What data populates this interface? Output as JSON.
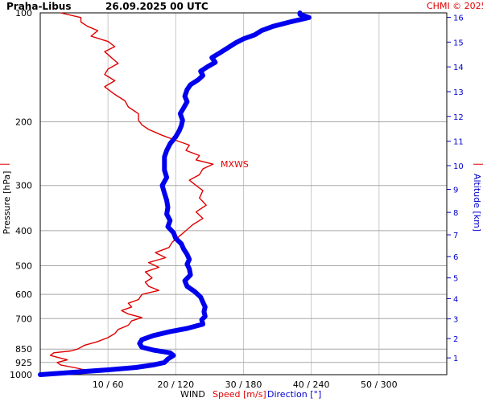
{
  "header": {
    "station": "Praha-Libus",
    "datetime": "26.09.2025 00 UTC",
    "copyright": "CHMI © 2025"
  },
  "chart_data": {
    "type": "line",
    "y_axis": {
      "label": "Pressure [hPa]",
      "scale": "log",
      "range": [
        1000,
        100
      ],
      "ticks": [
        100,
        200,
        300,
        400,
        500,
        600,
        700,
        850,
        925,
        1000
      ]
    },
    "right_axis": {
      "label": "Altitude [km]",
      "ticks": [
        1,
        2,
        3,
        4,
        5,
        6,
        7,
        8,
        9,
        10,
        11,
        12,
        13,
        14,
        15,
        16
      ]
    },
    "x_axis": {
      "title": "WIND",
      "speed_label": "Speed [m/s]",
      "direction_label": "Direction [°]",
      "tick_labels": [
        "10 / 60",
        "20 / 120",
        "30 / 180",
        "40 / 240",
        "50 / 300"
      ],
      "speed_range": [
        0,
        60
      ],
      "direction_range": [
        0,
        360
      ]
    },
    "annotation": "MXWS",
    "grid": true,
    "series": [
      {
        "name": "Speed [m/s]",
        "color": "#e00000",
        "points": [
          [
            1000,
            1.0
          ],
          [
            990,
            4.5
          ],
          [
            975,
            7.0
          ],
          [
            960,
            5.5
          ],
          [
            940,
            3.0
          ],
          [
            925,
            2.5
          ],
          [
            910,
            4.0
          ],
          [
            900,
            3.0
          ],
          [
            885,
            1.5
          ],
          [
            870,
            2.0
          ],
          [
            860,
            4.5
          ],
          [
            850,
            5.5
          ],
          [
            830,
            6.5
          ],
          [
            810,
            8.5
          ],
          [
            790,
            10.0
          ],
          [
            770,
            11.0
          ],
          [
            750,
            11.5
          ],
          [
            730,
            13.0
          ],
          [
            710,
            13.5
          ],
          [
            695,
            15.0
          ],
          [
            680,
            13.0
          ],
          [
            665,
            12.0
          ],
          [
            650,
            13.5
          ],
          [
            635,
            13.0
          ],
          [
            620,
            14.5
          ],
          [
            600,
            15.0
          ],
          [
            585,
            17.5
          ],
          [
            570,
            16.0
          ],
          [
            555,
            15.5
          ],
          [
            540,
            16.5
          ],
          [
            520,
            15.5
          ],
          [
            505,
            17.5
          ],
          [
            490,
            16.0
          ],
          [
            475,
            18.5
          ],
          [
            460,
            17.0
          ],
          [
            445,
            19.0
          ],
          [
            430,
            19.5
          ],
          [
            415,
            20.5
          ],
          [
            400,
            21.5
          ],
          [
            385,
            22.5
          ],
          [
            370,
            24.0
          ],
          [
            355,
            23.0
          ],
          [
            340,
            24.5
          ],
          [
            325,
            23.5
          ],
          [
            310,
            24.0
          ],
          [
            300,
            23.0
          ],
          [
            290,
            22.0
          ],
          [
            280,
            23.5
          ],
          [
            270,
            24.0
          ],
          [
            262,
            25.5
          ],
          [
            255,
            23.0
          ],
          [
            248,
            23.5
          ],
          [
            240,
            21.5
          ],
          [
            232,
            22.0
          ],
          [
            225,
            20.0
          ],
          [
            218,
            18.0
          ],
          [
            210,
            16.0
          ],
          [
            204,
            15.0
          ],
          [
            198,
            14.5
          ],
          [
            190,
            14.5
          ],
          [
            182,
            13.0
          ],
          [
            175,
            12.5
          ],
          [
            168,
            11.0
          ],
          [
            160,
            9.5
          ],
          [
            154,
            11.0
          ],
          [
            148,
            9.5
          ],
          [
            143,
            10.0
          ],
          [
            138,
            11.5
          ],
          [
            133,
            10.5
          ],
          [
            128,
            9.5
          ],
          [
            124,
            11.0
          ],
          [
            120,
            10.0
          ],
          [
            116,
            7.5
          ],
          [
            112,
            8.5
          ],
          [
            109,
            7.0
          ],
          [
            106,
            6.0
          ],
          [
            103,
            6.0
          ],
          [
            100,
            3.0
          ]
        ]
      },
      {
        "name": "Direction [°]",
        "color": "#0000ee",
        "points": [
          [
            1000,
            0
          ],
          [
            985,
            30
          ],
          [
            970,
            60
          ],
          [
            955,
            85
          ],
          [
            940,
            100
          ],
          [
            925,
            110
          ],
          [
            905,
            113
          ],
          [
            885,
            118
          ],
          [
            870,
            115
          ],
          [
            855,
            100
          ],
          [
            840,
            90
          ],
          [
            820,
            88
          ],
          [
            800,
            90
          ],
          [
            780,
            100
          ],
          [
            760,
            115
          ],
          [
            745,
            130
          ],
          [
            725,
            144
          ],
          [
            705,
            143
          ],
          [
            690,
            146
          ],
          [
            670,
            145
          ],
          [
            650,
            146
          ],
          [
            630,
            144
          ],
          [
            610,
            142
          ],
          [
            590,
            137
          ],
          [
            570,
            130
          ],
          [
            550,
            128
          ],
          [
            530,
            133
          ],
          [
            510,
            132
          ],
          [
            495,
            130
          ],
          [
            480,
            132
          ],
          [
            465,
            130
          ],
          [
            450,
            127
          ],
          [
            435,
            125
          ],
          [
            420,
            120
          ],
          [
            405,
            118
          ],
          [
            390,
            113
          ],
          [
            375,
            115
          ],
          [
            360,
            112
          ],
          [
            345,
            113
          ],
          [
            330,
            112
          ],
          [
            315,
            110
          ],
          [
            300,
            108
          ],
          [
            285,
            112
          ],
          [
            272,
            110
          ],
          [
            262,
            110
          ],
          [
            250,
            110
          ],
          [
            240,
            112
          ],
          [
            230,
            115
          ],
          [
            220,
            120
          ],
          [
            212,
            123
          ],
          [
            205,
            125
          ],
          [
            198,
            126
          ],
          [
            190,
            124
          ],
          [
            183,
            127
          ],
          [
            176,
            130
          ],
          [
            170,
            128
          ],
          [
            163,
            130
          ],
          [
            158,
            133
          ],
          [
            153,
            140
          ],
          [
            149,
            144
          ],
          [
            145,
            142
          ],
          [
            141,
            148
          ],
          [
            137,
            155
          ],
          [
            133,
            152
          ],
          [
            129,
            159
          ],
          [
            125,
            166
          ],
          [
            121,
            173
          ],
          [
            118,
            180
          ],
          [
            115,
            190
          ],
          [
            112,
            196
          ],
          [
            109,
            206
          ],
          [
            106,
            221
          ],
          [
            103,
            238
          ],
          [
            101,
            230
          ],
          [
            100,
            230
          ]
        ]
      }
    ]
  }
}
